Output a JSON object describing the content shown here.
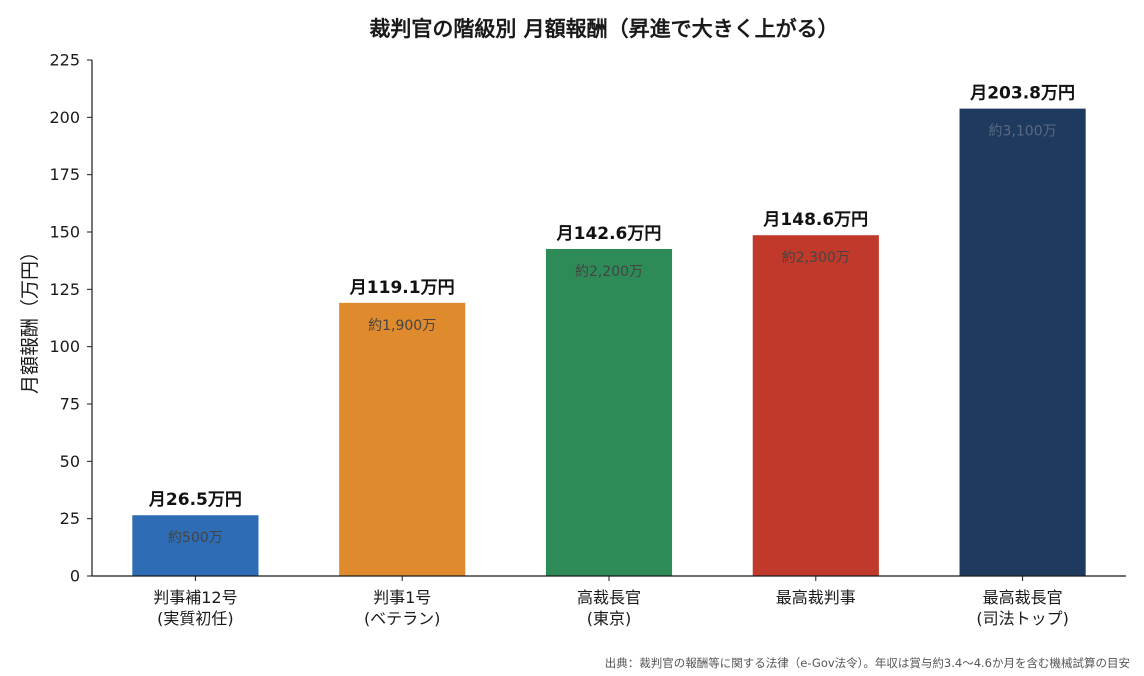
{
  "chart_data": {
    "type": "bar",
    "title": "裁判官の階級別 月額報酬（昇進で大きく上がる）",
    "ylabel": "月額報酬（万円）",
    "xlabel": "",
    "ylim": [
      0,
      225
    ],
    "yticks": [
      0,
      25,
      50,
      75,
      100,
      125,
      150,
      175,
      200,
      225
    ],
    "grid": false,
    "categories": [
      [
        "判事補12号",
        "(実質初任)"
      ],
      [
        "判事1号",
        "(ベテラン)"
      ],
      [
        "高裁長官",
        "(東京)"
      ],
      [
        "最高裁判事"
      ],
      [
        "最高裁長官",
        "(司法トップ)"
      ]
    ],
    "values": [
      26.5,
      119.1,
      142.6,
      148.6,
      203.8
    ],
    "value_labels": [
      "月26.5万円",
      "月119.1万円",
      "月142.6万円",
      "月148.6万円",
      "月203.8万円"
    ],
    "annual_labels": [
      "約500万",
      "約1,900万",
      "約2,200万",
      "約2,300万",
      "約3,100万"
    ],
    "colors": [
      "#2e6db5",
      "#e08a2e",
      "#2e8b57",
      "#c0392b",
      "#1f3a5f"
    ],
    "annual_label_colors": [
      "#444444",
      "#444444",
      "#444444",
      "#444444",
      "#5a6a80"
    ]
  },
  "source_note": "出典：裁判官の報酬等に関する法律（e-Gov法令）。年収は賞与約3.4〜4.6か月を含む機械試算の目安"
}
